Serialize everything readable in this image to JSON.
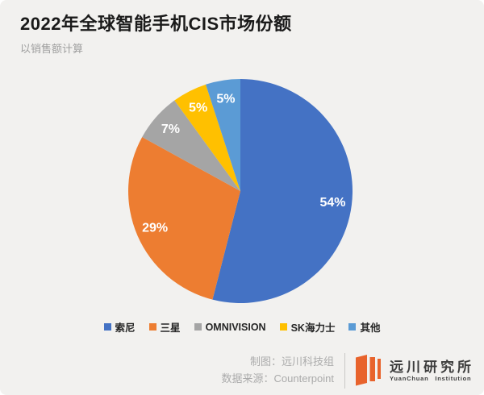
{
  "header": {
    "title": "2022年全球智能手机CIS市场份额",
    "subtitle": "以销售额计算"
  },
  "chart_data": {
    "type": "pie",
    "title": "2022年全球智能手机CIS市场份额",
    "subtitle": "以销售额计算",
    "categories": [
      "索尼",
      "三星",
      "OMNIVISION",
      "SK海力士",
      "其他"
    ],
    "values": [
      54,
      29,
      7,
      5,
      5
    ],
    "data_labels": [
      "54%",
      "29%",
      "7%",
      "5%",
      "5%"
    ],
    "colors": [
      "#4472c4",
      "#ed7d31",
      "#a5a5a5",
      "#ffc000",
      "#5b9bd5"
    ],
    "start_angle_deg": 0,
    "direction": "clockwise",
    "label_color": "#ffffff",
    "label_radius_factor": 0.83,
    "legend_position": "bottom",
    "legend_entries": [
      "索尼",
      "三星",
      "OMNIVISION",
      "SK海力士",
      "其他"
    ]
  },
  "footer": {
    "credit_maker": "制图：远川科技组",
    "credit_source": "数据来源：Counterpoint"
  },
  "logo": {
    "name_cn": "远川研究所",
    "name_en": "YuanChuan Institution",
    "brand_color": "#e8632c"
  }
}
